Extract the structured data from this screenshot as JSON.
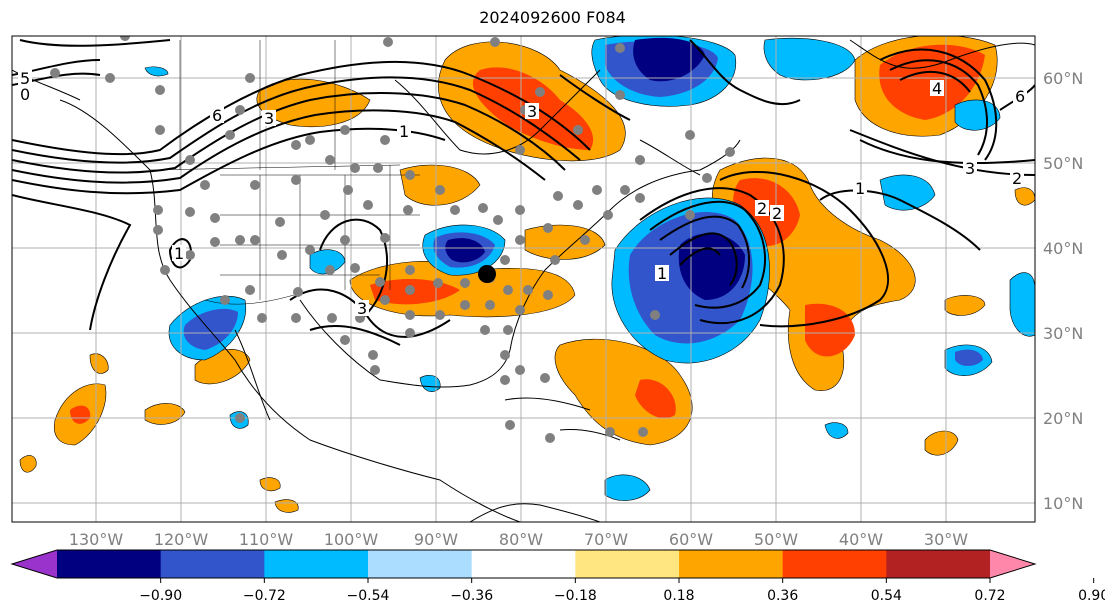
{
  "title": "2024092600 F084",
  "map": {
    "longitude_labels": [
      "130°W",
      "120°W",
      "110°W",
      "100°W",
      "90°W",
      "80°W",
      "70°W",
      "60°W",
      "50°W",
      "40°W",
      "30°W"
    ],
    "latitude_labels": [
      "60°N",
      "50°N",
      "40°N",
      "30°N",
      "20°N",
      "10°N"
    ],
    "contour_labels": [
      "5",
      "0",
      "6",
      "3",
      "1",
      "3",
      "1",
      "3",
      "6",
      "4",
      "3",
      "2",
      "2",
      "2",
      "1",
      "1"
    ]
  },
  "colorbar": {
    "tick_labels": [
      "−0.90",
      "−0.72",
      "−0.54",
      "−0.36",
      "−0.18",
      "0.18",
      "0.36",
      "0.54",
      "0.72",
      "0.90"
    ],
    "colors": [
      "#9933cc",
      "#000080",
      "#3355cc",
      "#00bbff",
      "#aaddff",
      "#ffffff",
      "#ffe680",
      "#ffa500",
      "#ff4000",
      "#b22222",
      "#ff88aa"
    ]
  },
  "colors": {
    "strong_negative": "#000080",
    "moderate_negative": "#3355cc",
    "weak_negative": "#00bbff",
    "weak_positive": "#ffa500",
    "moderate_positive": "#ff4000",
    "strong_positive": "#b22222",
    "gridline": "#b0b0b0",
    "station_dot": "#808080"
  }
}
